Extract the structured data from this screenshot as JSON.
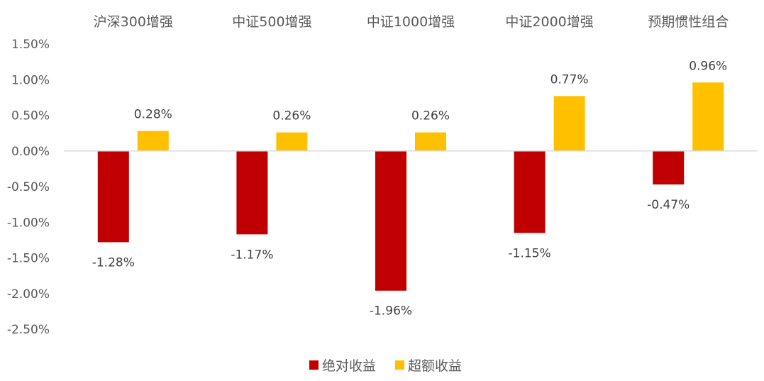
{
  "chart_data": {
    "type": "bar",
    "categories": [
      "沪深300增强",
      "中证500增强",
      "中证1000增强",
      "中证2000增强",
      "预期惯性组合"
    ],
    "series": [
      {
        "name": "绝对收益",
        "values": [
          -1.28,
          -1.17,
          -1.96,
          -1.15,
          -0.47
        ],
        "labels": [
          "-1.28%",
          "-1.17%",
          "-1.96%",
          "-1.15%",
          "-0.47%"
        ]
      },
      {
        "name": "超额收益",
        "values": [
          0.28,
          0.26,
          0.26,
          0.77,
          0.96
        ],
        "labels": [
          "0.28%",
          "0.26%",
          "0.26%",
          "0.77%",
          "0.96%"
        ]
      }
    ],
    "y_ticks": [
      1.5,
      1.0,
      0.5,
      0.0,
      -0.5,
      -1.0,
      -1.5,
      -2.0,
      -2.5
    ],
    "y_tick_labels": [
      "1.50%",
      "1.00%",
      "0.50%",
      "0.00%",
      "-0.50%",
      "-1.00%",
      "-1.50%",
      "-2.00%",
      "-2.50%"
    ],
    "ylim": [
      -2.5,
      1.5
    ],
    "category_labels_position": "top",
    "legend_position": "bottom-center",
    "grid": false,
    "colors": {
      "绝对收益": "#C00000",
      "超额收益": "#FFC000",
      "axis": "#D9D9D9"
    }
  }
}
